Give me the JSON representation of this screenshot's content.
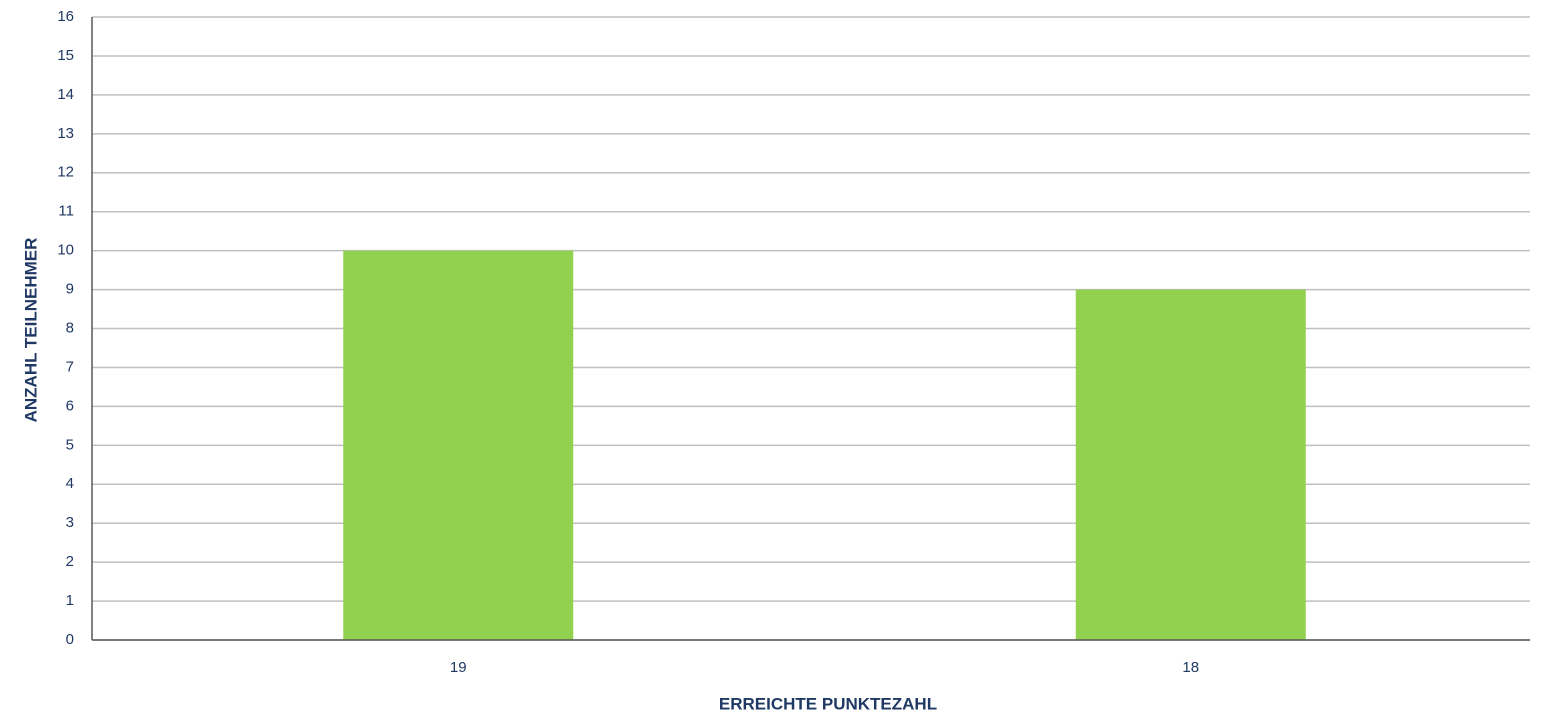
{
  "chart_data": {
    "type": "bar",
    "categories": [
      "19",
      "18"
    ],
    "values": [
      10,
      9
    ],
    "color": "#92d050",
    "xlabel": "ERREICHTE PUNKTEZAHL",
    "ylabel": "ANZAHL TEILNEHMER",
    "ylim": [
      0,
      16
    ],
    "yticks": [
      0,
      1,
      2,
      3,
      4,
      5,
      6,
      7,
      8,
      9,
      10,
      11,
      12,
      13,
      14,
      15,
      16
    ],
    "grid": true
  }
}
